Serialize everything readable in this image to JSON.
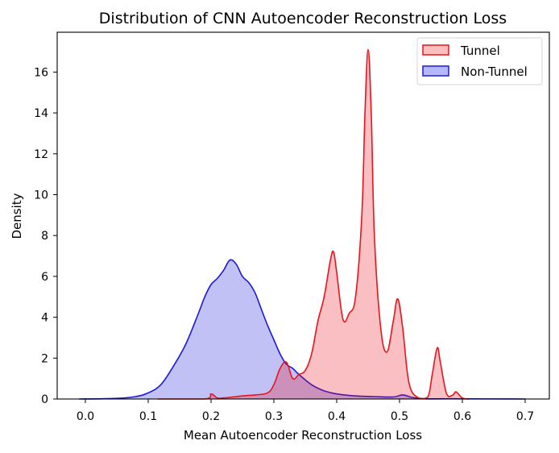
{
  "chart_data": {
    "type": "area",
    "subtype": "kde",
    "title": "Distribution of CNN Autoencoder Reconstruction Loss",
    "xlabel": "Mean Autoencoder Reconstruction Loss",
    "ylabel": "Density",
    "xlim": [
      -0.045,
      0.74
    ],
    "ylim": [
      0,
      17.9
    ],
    "xticks": [
      "0.0",
      "0.1",
      "0.2",
      "0.3",
      "0.4",
      "0.5",
      "0.6",
      "0.7"
    ],
    "yticks": [
      "0",
      "2",
      "4",
      "6",
      "8",
      "10",
      "12",
      "14",
      "16"
    ],
    "grid": false,
    "legend_position": "upper right",
    "series": [
      {
        "name": "Tunnel",
        "line_color": "#e8141c",
        "fill_color": "#ffbfbf",
        "x": [
          0.115,
          0.19,
          0.2,
          0.21,
          0.22,
          0.25,
          0.27,
          0.29,
          0.3,
          0.31,
          0.32,
          0.33,
          0.34,
          0.35,
          0.36,
          0.37,
          0.38,
          0.39,
          0.395,
          0.4,
          0.41,
          0.42,
          0.43,
          0.44,
          0.445,
          0.45,
          0.455,
          0.46,
          0.47,
          0.48,
          0.49,
          0.497,
          0.505,
          0.515,
          0.53,
          0.545,
          0.552,
          0.56,
          0.565,
          0.575,
          0.585,
          0.59,
          0.6,
          0.61
        ],
        "y": [
          0.0,
          0.0,
          0.25,
          0.05,
          0.05,
          0.15,
          0.2,
          0.3,
          0.7,
          1.5,
          1.8,
          1.0,
          1.2,
          1.4,
          2.2,
          3.8,
          5.0,
          6.8,
          7.2,
          6.2,
          3.9,
          4.2,
          5.0,
          9.0,
          14.0,
          17.1,
          14.0,
          8.0,
          3.5,
          2.3,
          3.8,
          4.9,
          3.5,
          0.8,
          0.05,
          0.1,
          1.2,
          2.5,
          1.8,
          0.25,
          0.2,
          0.35,
          0.05,
          0.0
        ]
      },
      {
        "name": "Non-Tunnel",
        "line_color": "#1a1adb",
        "fill_color": "#b7b7fb",
        "x": [
          -0.01,
          0.05,
          0.08,
          0.1,
          0.12,
          0.14,
          0.16,
          0.18,
          0.19,
          0.2,
          0.21,
          0.22,
          0.23,
          0.24,
          0.25,
          0.26,
          0.27,
          0.28,
          0.29,
          0.3,
          0.31,
          0.32,
          0.33,
          0.34,
          0.36,
          0.38,
          0.4,
          0.43,
          0.46,
          0.49,
          0.505,
          0.52,
          0.54,
          0.58,
          0.7
        ],
        "y": [
          0.0,
          0.03,
          0.12,
          0.3,
          0.7,
          1.6,
          2.7,
          4.2,
          5.0,
          5.6,
          5.9,
          6.3,
          6.8,
          6.6,
          6.0,
          5.7,
          5.2,
          4.4,
          3.6,
          2.9,
          2.2,
          1.7,
          1.5,
          1.2,
          0.7,
          0.4,
          0.25,
          0.15,
          0.12,
          0.1,
          0.2,
          0.08,
          0.01,
          0.01,
          0.0
        ]
      }
    ]
  },
  "legend": {
    "items": [
      {
        "label": "Tunnel",
        "color": "#e8141c",
        "fill": "#ffbfbf"
      },
      {
        "label": "Non-Tunnel",
        "color": "#1a1adb",
        "fill": "#b7b7fb"
      }
    ]
  }
}
